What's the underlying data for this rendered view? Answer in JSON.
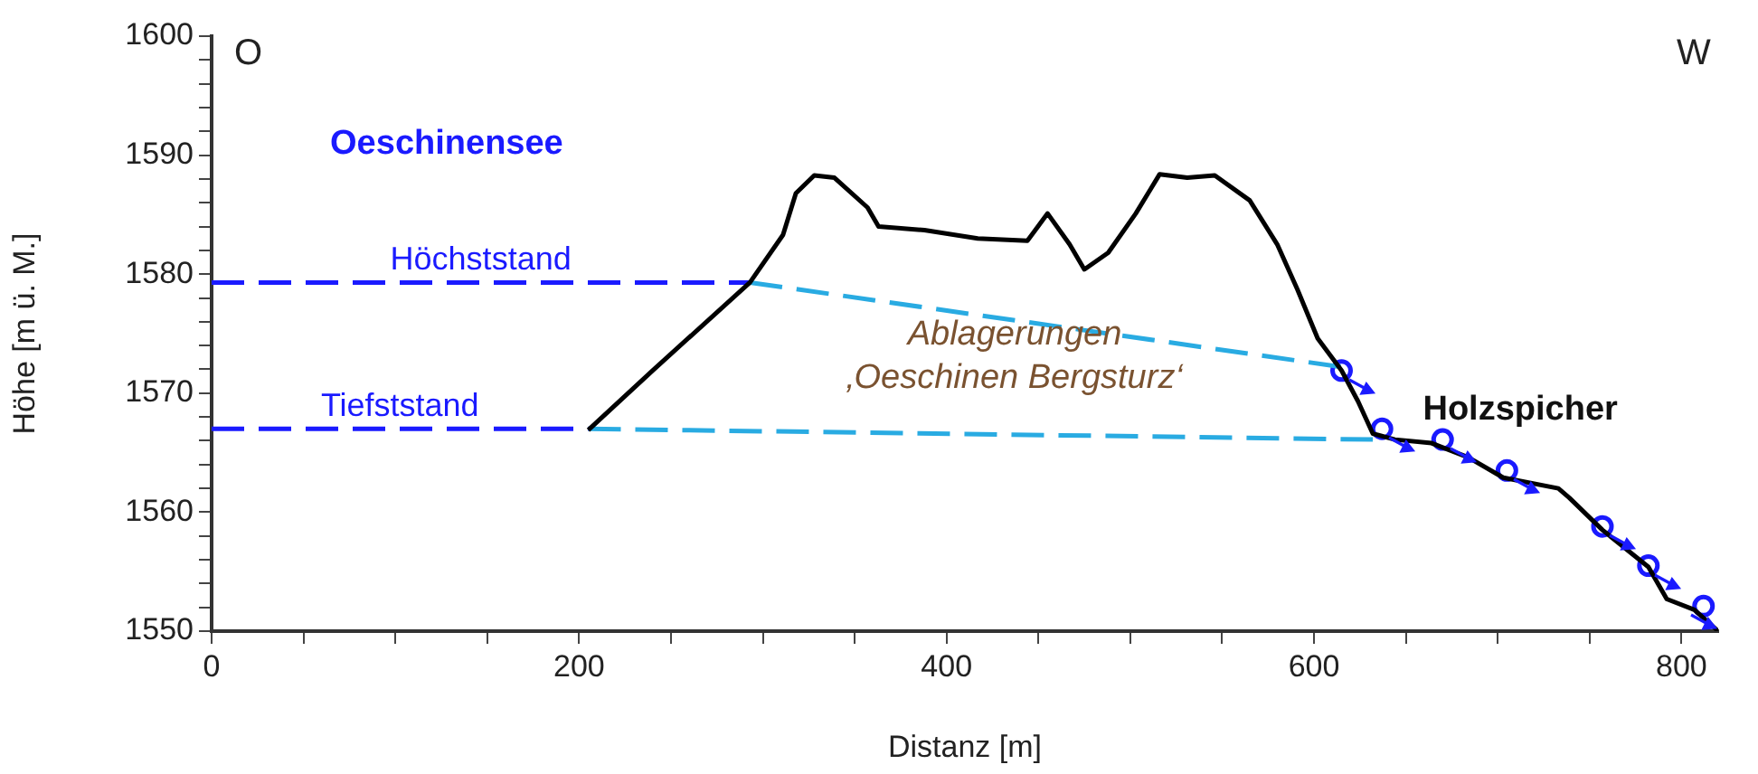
{
  "chart_data": {
    "type": "line",
    "xlabel": "Distanz [m]",
    "ylabel": "Höhe [m ü. M.]",
    "xlim": [
      0,
      820
    ],
    "ylim": [
      1550,
      1600
    ],
    "xticks": [
      0,
      {
        "value": 50,
        "label": null
      },
      200,
      {
        "value": 100,
        "label": null
      },
      {
        "value": 150,
        "label": null
      },
      {
        "value": 250,
        "label": null
      },
      {
        "value": 300,
        "label": null
      },
      {
        "value": 350,
        "label": null
      },
      400,
      {
        "value": 450,
        "label": null
      },
      {
        "value": 500,
        "label": null
      },
      {
        "value": 550,
        "label": null
      },
      600,
      {
        "value": 650,
        "label": null
      },
      {
        "value": 700,
        "label": null
      },
      {
        "value": 750,
        "label": null
      },
      800
    ],
    "yticks": [
      1550,
      {
        "value": 1552,
        "label": null
      },
      {
        "value": 1554,
        "label": null
      },
      {
        "value": 1556,
        "label": null
      },
      {
        "value": 1558,
        "label": null
      },
      1560,
      {
        "value": 1562,
        "label": null
      },
      {
        "value": 1564,
        "label": null
      },
      {
        "value": 1566,
        "label": null
      },
      {
        "value": 1568,
        "label": null
      },
      1570,
      {
        "value": 1572,
        "label": null
      },
      {
        "value": 1574,
        "label": null
      },
      {
        "value": 1576,
        "label": null
      },
      {
        "value": 1578,
        "label": null
      },
      1580,
      {
        "value": 1582,
        "label": null
      },
      {
        "value": 1584,
        "label": null
      },
      {
        "value": 1586,
        "label": null
      },
      {
        "value": 1588,
        "label": null
      },
      1590,
      {
        "value": 1592,
        "label": null
      },
      {
        "value": 1594,
        "label": null
      },
      {
        "value": 1596,
        "label": null
      },
      {
        "value": 1598,
        "label": null
      },
      1600
    ],
    "series": [
      {
        "color": "#000000",
        "line_style": "solid",
        "x": [
          205,
          240,
          293,
          311,
          318,
          328,
          339,
          357,
          363,
          388,
          417,
          444,
          455,
          467,
          475,
          488,
          503,
          516,
          531,
          546,
          565,
          580,
          591,
          602,
          615,
          624,
          632,
          644,
          664,
          684,
          703,
          733,
          739,
          757,
          782,
          792,
          807,
          820
        ],
        "values": [
          1566.9,
          1571.9,
          1579.3,
          1583.3,
          1586.8,
          1588.3,
          1588.1,
          1585.6,
          1584.0,
          1583.7,
          1583.0,
          1582.8,
          1585.1,
          1582.5,
          1580.4,
          1581.8,
          1585.1,
          1588.4,
          1588.1,
          1588.3,
          1586.2,
          1582.5,
          1578.7,
          1574.6,
          1571.9,
          1569.3,
          1566.6,
          1566.1,
          1565.8,
          1564.6,
          1562.9,
          1562.0,
          1561.2,
          1558.5,
          1555.4,
          1552.7,
          1551.8,
          1550.0
        ]
      },
      {
        "name": "Höchststand",
        "color": "#1a1aff",
        "line_style": "dashed",
        "x": [
          0,
          293
        ],
        "values": [
          1579.3,
          1579.3
        ]
      },
      {
        "name": "Tiefststand",
        "color": "#1a1aff",
        "line_style": "dashed",
        "x": [
          0,
          205
        ],
        "values": [
          1567.0,
          1567.0
        ]
      },
      {
        "color": "#29abe2",
        "line_style": "dashed",
        "x": [
          293,
          615
        ],
        "values": [
          1579.3,
          1572.2
        ]
      },
      {
        "color": "#29abe2",
        "line_style": "dashed",
        "x": [
          205,
          632
        ],
        "values": [
          1567.0,
          1566.1
        ]
      },
      {
        "type": "scatter",
        "color": "#1a1aff",
        "marker": "circle",
        "x": [
          615,
          637,
          670,
          705,
          757,
          782,
          812
        ],
        "values": [
          1571.9,
          1567.0,
          1566.1,
          1563.5,
          1558.8,
          1555.5,
          1552.1
        ]
      }
    ],
    "annotations": [
      "O",
      "W",
      "Oeschinensee",
      "Ablagerungen\n‚Oeschinen Bergsturz‘",
      "Holzspicher"
    ]
  }
}
